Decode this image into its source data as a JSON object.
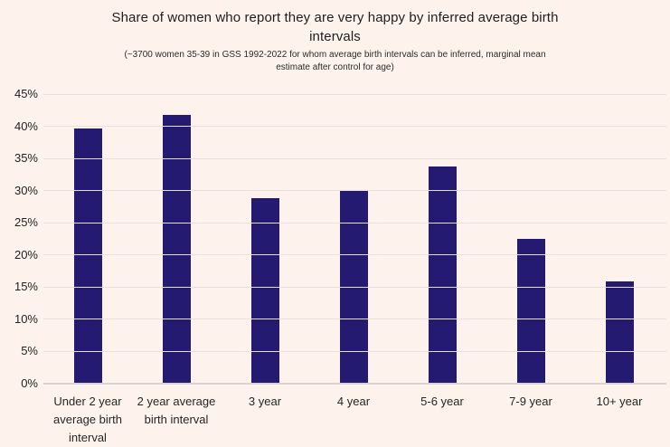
{
  "chart_data": {
    "type": "bar",
    "title": "Share of women who report they are very happy by inferred average birth\nintervals",
    "subtitle": "(~3700 women 35-39 in GSS 1992-2022 for whom average birth intervals can be inferred, marginal mean\nestimate after control for age)",
    "categories": [
      "Under 2 year\naverage birth\ninterval",
      "2 year average\nbirth interval",
      "3 year",
      "4 year",
      "5-6 year",
      "7-9 year",
      "10+ year"
    ],
    "values": [
      39.7,
      41.7,
      28.9,
      30.1,
      33.8,
      22.5,
      15.9
    ],
    "unit": "%",
    "xlabel": "",
    "ylabel": "",
    "ylim": [
      0,
      45
    ],
    "ytick_step": 5,
    "ytick_labels": [
      "0%",
      "5%",
      "10%",
      "15%",
      "20%",
      "25%",
      "30%",
      "35%",
      "40%",
      "45%"
    ],
    "grid": true,
    "legend": false,
    "colors": {
      "bar": "#241a72",
      "background": "#fdf3ec",
      "gridline": "#e6e1df",
      "baseline": "#d9d4d2",
      "title_text": "#1e1e1e",
      "tick_text": "#1f1f1f"
    }
  }
}
